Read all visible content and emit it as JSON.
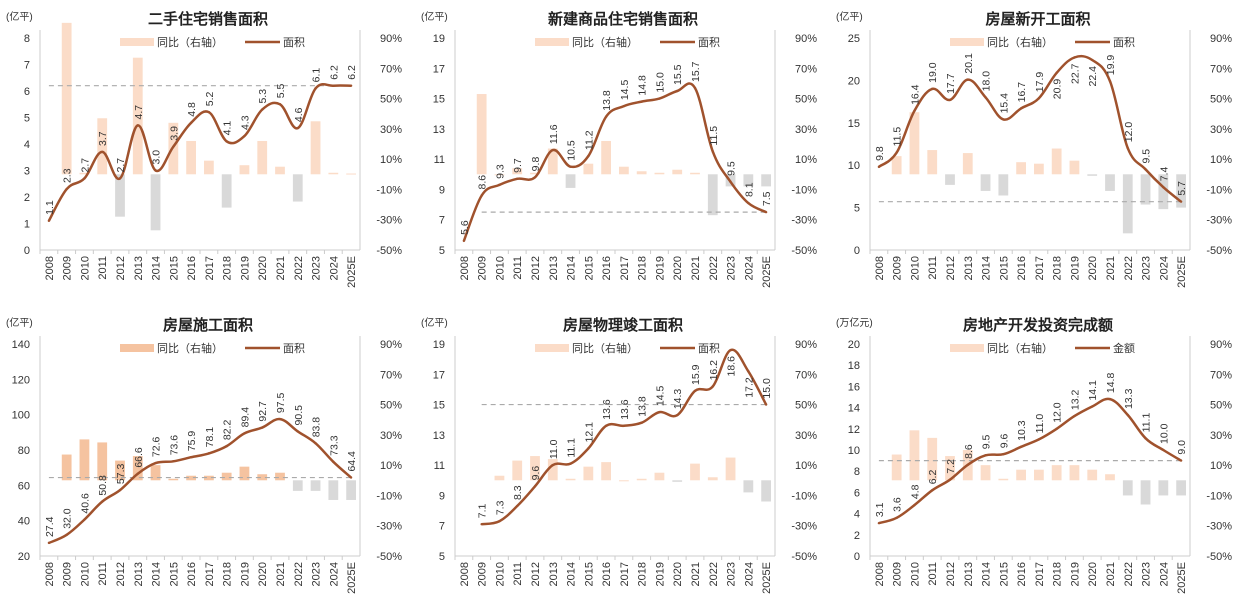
{
  "colors": {
    "line": "#a0522d",
    "bar_pos": "#fbdcc8",
    "bar_pos_dark": "#f5c3a0",
    "bar_neg": "#d9d9d9",
    "ref_line": "#aaaaaa",
    "axis": "#cccccc"
  },
  "chart_data": [
    {
      "id": "secondhand",
      "type": "bar+line",
      "title": "二手住宅销售面积",
      "unit": "(亿平)",
      "legend": [
        "同比（右轴）",
        "面积"
      ],
      "legend_placement": "top-center",
      "categories": [
        "2008",
        "2009",
        "2010",
        "2011",
        "2012",
        "2013",
        "2014",
        "2015",
        "2016",
        "2017",
        "2018",
        "2019",
        "2020",
        "2021",
        "2022",
        "2023",
        "2024",
        "2025E"
      ],
      "line_values": [
        1.1,
        2.3,
        2.7,
        3.7,
        2.7,
        4.7,
        3.0,
        3.9,
        4.8,
        5.2,
        4.1,
        4.3,
        5.3,
        5.5,
        4.6,
        6.1,
        6.2,
        6.2
      ],
      "line_labels": [
        "1.1",
        "2.3",
        "2.7",
        "3.7",
        "2.7",
        "4.7",
        "3.0",
        "3.9",
        "4.8",
        "5.2",
        "4.1",
        "4.3",
        "5.3",
        "5.5",
        "4.6",
        "6.1",
        "6.2",
        "6.2"
      ],
      "yoy_percent": [
        null,
        100,
        1,
        37,
        -28,
        77,
        -37,
        34,
        22,
        9,
        -22,
        6,
        22,
        5,
        -18,
        35,
        1,
        0.5
      ],
      "ylim_left": [
        0,
        8
      ],
      "yticks_left": [
        "0",
        "1",
        "2",
        "3",
        "4",
        "5",
        "6",
        "7",
        "8"
      ],
      "yticks_left_values": [
        0,
        1,
        2,
        3,
        4,
        5,
        6,
        7,
        8
      ],
      "ylim_right": [
        -50,
        90
      ],
      "yticks_right": [
        "-50%",
        "-30%",
        "-10%",
        "10%",
        "30%",
        "50%",
        "70%",
        "90%"
      ],
      "yticks_right_values": [
        -50,
        -30,
        -10,
        10,
        30,
        50,
        70,
        90
      ],
      "ref_line_value": 6.2,
      "ref_line_from_index": 0,
      "bar_style": "light",
      "grid": false
    },
    {
      "id": "new-commercial",
      "type": "bar+line",
      "title": "新建商品住宅销售面积",
      "unit": "(亿平)",
      "legend": [
        "同比（右轴）",
        "面积"
      ],
      "legend_placement": "top-center",
      "categories": [
        "2008",
        "2009",
        "2010",
        "2011",
        "2012",
        "2013",
        "2014",
        "2015",
        "2016",
        "2017",
        "2018",
        "2019",
        "2020",
        "2021",
        "2022",
        "2023",
        "2024",
        "2025E"
      ],
      "line_values": [
        5.6,
        8.6,
        9.3,
        9.7,
        9.8,
        11.6,
        10.5,
        11.2,
        13.8,
        14.5,
        14.8,
        15.0,
        15.5,
        15.7,
        11.5,
        9.5,
        8.1,
        7.5
      ],
      "line_labels": [
        "5.6",
        "8.6",
        "9.3",
        "9.7",
        "9.8",
        "11.6",
        "10.5",
        "11.2",
        "13.8",
        "14.5",
        "14.8",
        "15.0",
        "15.5",
        "15.7",
        "11.5",
        "9.5",
        "8.1",
        "7.5"
      ],
      "yoy_percent": [
        null,
        53,
        0,
        4,
        1,
        17,
        -9,
        7,
        22,
        5,
        2,
        1,
        3,
        1,
        -27,
        -8,
        -8,
        -8
      ],
      "ylim_left": [
        5,
        19
      ],
      "yticks_left": [
        "5",
        "7",
        "9",
        "11",
        "13",
        "15",
        "17",
        "19"
      ],
      "yticks_left_values": [
        5,
        7,
        9,
        11,
        13,
        15,
        17,
        19
      ],
      "ylim_right": [
        -50,
        90
      ],
      "yticks_right": [
        "-50%",
        "-30%",
        "-10%",
        "10%",
        "30%",
        "50%",
        "70%",
        "90%"
      ],
      "yticks_right_values": [
        -50,
        -30,
        -10,
        10,
        30,
        50,
        70,
        90
      ],
      "ref_line_value": 7.5,
      "ref_line_from_index": 1,
      "bar_style": "light",
      "grid": false
    },
    {
      "id": "new-starts",
      "type": "bar+line",
      "title": "房屋新开工面积",
      "unit": "(亿平)",
      "legend": [
        "同比（右轴）",
        "面积"
      ],
      "legend_placement": "top-center",
      "categories": [
        "2008",
        "2009",
        "2010",
        "2011",
        "2012",
        "2013",
        "2014",
        "2015",
        "2016",
        "2017",
        "2018",
        "2019",
        "2020",
        "2021",
        "2022",
        "2023",
        "2024",
        "2025E"
      ],
      "line_values": [
        9.8,
        11.5,
        16.4,
        19.0,
        17.7,
        20.1,
        18.0,
        15.4,
        16.7,
        17.9,
        20.9,
        22.7,
        22.4,
        19.9,
        12.0,
        9.5,
        7.4,
        5.7
      ],
      "line_labels": [
        "9.8",
        "11.5",
        "16.4",
        "19.0",
        "17.7",
        "20.1",
        "18.0",
        "15.4",
        "16.7",
        "17.9",
        "20.9",
        "22.7",
        "22.4",
        "19.9",
        "12.0",
        "9.5",
        "7.4",
        "5.7"
      ],
      "yoy_percent": [
        null,
        12,
        41,
        16,
        -7,
        14,
        -11,
        -14,
        8,
        7,
        17,
        9,
        -1,
        -11,
        -39,
        -20,
        -23,
        -22
      ],
      "ylim_left": [
        0,
        25
      ],
      "yticks_left": [
        "0",
        "5",
        "10",
        "15",
        "20",
        "25"
      ],
      "yticks_left_values": [
        0,
        5,
        10,
        15,
        20,
        25
      ],
      "ylim_right": [
        -50,
        90
      ],
      "yticks_right": [
        "-50%",
        "-30%",
        "-10%",
        "10%",
        "30%",
        "50%",
        "70%",
        "90%"
      ],
      "yticks_right_values": [
        -50,
        -30,
        -10,
        10,
        30,
        50,
        70,
        90
      ],
      "ref_line_value": 5.7,
      "ref_line_from_index": 0,
      "bar_style": "light",
      "grid": false
    },
    {
      "id": "under-construction",
      "type": "bar+line",
      "title": "房屋施工面积",
      "unit": "(亿平)",
      "legend": [
        "同比（右轴）",
        "面积"
      ],
      "legend_placement": "top-center",
      "categories": [
        "2008",
        "2009",
        "2010",
        "2011",
        "2012",
        "2013",
        "2014",
        "2015",
        "2016",
        "2017",
        "2018",
        "2019",
        "2020",
        "2021",
        "2022",
        "2023",
        "2024",
        "2025E"
      ],
      "line_values": [
        27.4,
        32.0,
        40.6,
        50.8,
        57.3,
        66.6,
        72.6,
        73.6,
        75.9,
        78.1,
        82.2,
        89.4,
        92.7,
        97.5,
        90.5,
        83.8,
        73.3,
        64.4
      ],
      "line_labels": [
        "27.4",
        "32.0",
        "40.6",
        "50.8",
        "57.3",
        "66.6",
        "72.6",
        "73.6",
        "75.9",
        "78.1",
        "82.2",
        "89.4",
        "92.7",
        "97.5",
        "90.5",
        "83.8",
        "73.3",
        "64.4"
      ],
      "yoy_percent": [
        null,
        17,
        27,
        25,
        13,
        16,
        10,
        1,
        3,
        3,
        5,
        9,
        4,
        5,
        -7,
        -7,
        -13,
        -13
      ],
      "ylim_left": [
        20,
        140
      ],
      "yticks_left": [
        "20",
        "40",
        "60",
        "80",
        "100",
        "120",
        "140"
      ],
      "yticks_left_values": [
        20,
        40,
        60,
        80,
        100,
        120,
        140
      ],
      "ylim_right": [
        -50,
        90
      ],
      "yticks_right": [
        "-50%",
        "-30%",
        "-10%",
        "10%",
        "30%",
        "50%",
        "70%",
        "90%"
      ],
      "yticks_right_values": [
        -50,
        -30,
        -10,
        10,
        30,
        50,
        70,
        90
      ],
      "ref_line_value": 64.4,
      "ref_line_from_index": 0,
      "bar_style": "dark",
      "grid": false
    },
    {
      "id": "completions",
      "type": "bar+line",
      "title": "房屋物理竣工面积",
      "unit": "(亿平)",
      "legend": [
        "同比（右轴）",
        "面积"
      ],
      "legend_placement": "top-center",
      "categories": [
        "2008",
        "2009",
        "2010",
        "2011",
        "2012",
        "2013",
        "2014",
        "2015",
        "2016",
        "2017",
        "2018",
        "2019",
        "2020",
        "2021",
        "2022",
        "2023",
        "2024",
        "2025E"
      ],
      "line_values": [
        null,
        7.1,
        7.3,
        8.3,
        9.6,
        11.0,
        11.1,
        12.1,
        13.6,
        13.6,
        13.8,
        14.5,
        14.3,
        15.9,
        16.2,
        18.6,
        17.2,
        15.0
      ],
      "line_labels": [
        "",
        "7.1",
        "7.3",
        "8.3",
        "9.6",
        "11.0",
        "11.1",
        "12.1",
        "13.6",
        "13.6",
        "13.8",
        "14.5",
        "14.3",
        "15.9",
        "16.2",
        "18.6",
        "17.2",
        "15.0"
      ],
      "yoy_percent": [
        null,
        null,
        3,
        13,
        16,
        14,
        1,
        9,
        12,
        0,
        1,
        5,
        -1,
        11,
        2,
        15,
        -8,
        -14
      ],
      "ylim_left": [
        5,
        19
      ],
      "yticks_left": [
        "5",
        "7",
        "9",
        "11",
        "13",
        "15",
        "17",
        "19"
      ],
      "yticks_left_values": [
        5,
        7,
        9,
        11,
        13,
        15,
        17,
        19
      ],
      "ylim_right": [
        -50,
        90
      ],
      "yticks_right": [
        "-50%",
        "-30%",
        "-10%",
        "10%",
        "30%",
        "50%",
        "70%",
        "90%"
      ],
      "yticks_right_values": [
        -50,
        -30,
        -10,
        10,
        30,
        50,
        70,
        90
      ],
      "ref_line_value": 15.0,
      "ref_line_from_index": 1,
      "bar_style": "light",
      "grid": false
    },
    {
      "id": "investment",
      "type": "bar+line",
      "title": "房地产开发投资完成额",
      "unit": "(万亿元)",
      "legend": [
        "同比（右轴）",
        "金额"
      ],
      "legend_placement": "top-center",
      "categories": [
        "2008",
        "2009",
        "2010",
        "2011",
        "2012",
        "2013",
        "2014",
        "2015",
        "2016",
        "2017",
        "2018",
        "2019",
        "2020",
        "2021",
        "2022",
        "2023",
        "2024",
        "2025E"
      ],
      "line_values": [
        3.1,
        3.6,
        4.8,
        6.2,
        7.2,
        8.6,
        9.5,
        9.6,
        10.3,
        11.0,
        12.0,
        13.2,
        14.1,
        14.8,
        13.3,
        11.1,
        10.0,
        9.0
      ],
      "line_labels": [
        "3.1",
        "3.6",
        "4.8",
        "6.2",
        "7.2",
        "8.6",
        "9.5",
        "9.6",
        "10.3",
        "11.0",
        "12.0",
        "13.2",
        "14.1",
        "14.8",
        "13.3",
        "11.1",
        "10.0",
        "9.0"
      ],
      "yoy_percent": [
        null,
        17,
        33,
        28,
        16,
        20,
        10,
        1,
        7,
        7,
        10,
        10,
        7,
        4,
        -10,
        -16,
        -10,
        -10
      ],
      "ylim_left": [
        0,
        20
      ],
      "yticks_left": [
        "0",
        "2",
        "4",
        "6",
        "8",
        "10",
        "12",
        "14",
        "16",
        "18",
        "20"
      ],
      "yticks_left_values": [
        0,
        2,
        4,
        6,
        8,
        10,
        12,
        14,
        16,
        18,
        20
      ],
      "ylim_right": [
        -50,
        90
      ],
      "yticks_right": [
        "-50%",
        "-30%",
        "-10%",
        "10%",
        "30%",
        "50%",
        "70%",
        "90%"
      ],
      "yticks_right_values": [
        -50,
        -30,
        -10,
        10,
        30,
        50,
        70,
        90
      ],
      "ref_line_value": 9.0,
      "ref_line_from_index": 0,
      "bar_style": "light",
      "grid": false
    }
  ]
}
